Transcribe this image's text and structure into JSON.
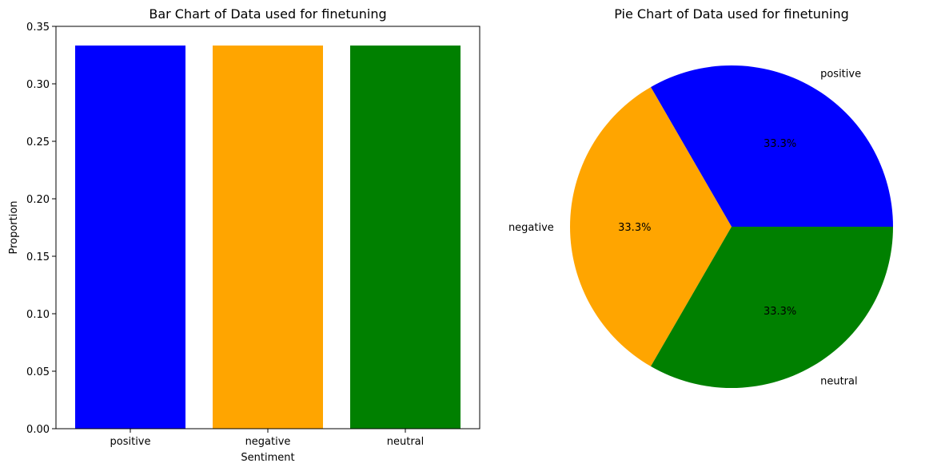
{
  "chart_data": [
    {
      "type": "bar",
      "title": "Bar Chart of Data used for finetuning",
      "xlabel": "Sentiment",
      "ylabel": "Proportion",
      "categories": [
        "positive",
        "negative",
        "neutral"
      ],
      "values": [
        0.3333,
        0.3333,
        0.3333
      ],
      "colors": [
        "#0000ff",
        "#ffa500",
        "#008000"
      ],
      "ylim": [
        0,
        0.35
      ],
      "yticks": [
        "0.00",
        "0.05",
        "0.10",
        "0.15",
        "0.20",
        "0.25",
        "0.30",
        "0.35"
      ],
      "grid": false
    },
    {
      "type": "pie",
      "title": "Pie Chart of Data used for finetuning",
      "labels": [
        "positive",
        "negative",
        "neutral"
      ],
      "values": [
        33.3,
        33.3,
        33.3
      ],
      "pct_labels": [
        "33.3%",
        "33.3%",
        "33.3%"
      ],
      "colors": [
        "#0000ff",
        "#ffa500",
        "#008000"
      ]
    }
  ]
}
